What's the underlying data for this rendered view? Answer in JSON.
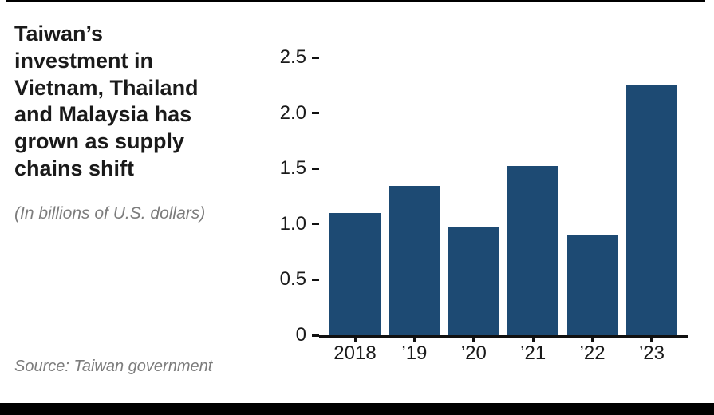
{
  "page": {
    "title": "Taiwan’s\ninvestment in\nVietnam, Thailand\nand Malaysia has\ngrown as supply\nchains shift",
    "subtitle": "(In billions of U.S. dollars)",
    "source": "Source: Taiwan government"
  },
  "colors": {
    "bar": "#1d4a73",
    "axis": "#111111",
    "title_text": "#1a1a1a",
    "muted_text": "#7c7c7c"
  },
  "chart_data": {
    "type": "bar",
    "title": "Taiwan’s investment in Vietnam, Thailand and Malaysia has grown as supply chains shift",
    "subtitle": "(In billions of U.S. dollars)",
    "source": "Source: Taiwan government",
    "categories": [
      "2018",
      "’19",
      "’20",
      "’21",
      "’22",
      "’23"
    ],
    "values": [
      1.1,
      1.34,
      0.97,
      1.52,
      0.9,
      2.25
    ],
    "xlabel": "",
    "ylabel": "",
    "ylim": [
      0,
      2.5
    ],
    "yticks": [
      0,
      0.5,
      1.0,
      1.5,
      2.0,
      2.5
    ],
    "ytick_labels": [
      "0",
      "0.5",
      "1.0",
      "1.5",
      "2.0",
      "2.5"
    ],
    "grid": false,
    "legend": false,
    "bar_color": "#1d4a73"
  }
}
